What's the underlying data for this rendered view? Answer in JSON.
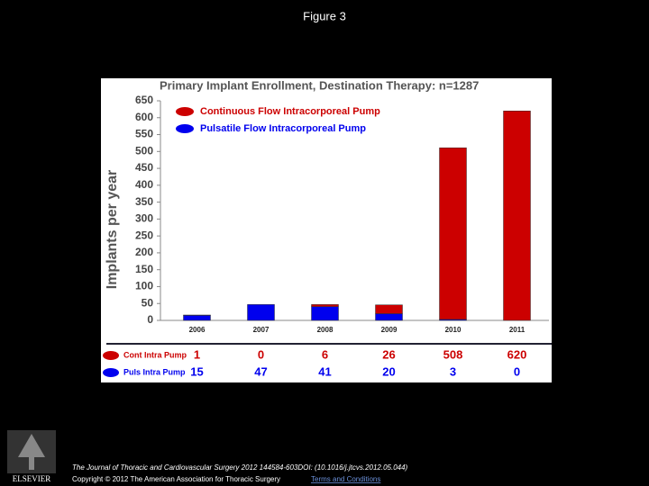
{
  "page": {
    "heading": "Figure 3",
    "citation": "The Journal of Thoracic and Cardiovascular Surgery 2012 144584-603DOI: (10.1016/j.jtcvs.2012.05.044)",
    "copyright": "Copyright © 2012 The American Association for Thoracic Surgery",
    "link": "Terms and Conditions",
    "publisher": "ELSEVIER"
  },
  "chart_data": {
    "type": "stacked_bar",
    "title": "Primary Implant Enrollment, Destination Therapy:  n=1287",
    "y_label": "Implants per year",
    "categories": [
      "2006",
      "2007",
      "2008",
      "2009",
      "2010",
      "2011"
    ],
    "series": [
      {
        "name": "Continuous Flow Intracorporeal Pump",
        "table_name": "Cont Intra Pump",
        "color": "#cc0000",
        "values": [
          1,
          0,
          6,
          26,
          508,
          620
        ]
      },
      {
        "name": "Pulsatile Flow Intracorporeal Pump",
        "table_name": "Puls Intra Pump",
        "color": "#0000ee",
        "values": [
          15,
          47,
          41,
          20,
          3,
          0
        ]
      }
    ],
    "ylim": [
      0,
      650
    ],
    "yticks": [
      0,
      50,
      100,
      150,
      200,
      250,
      300,
      350,
      400,
      450,
      500,
      550,
      600,
      650
    ]
  }
}
